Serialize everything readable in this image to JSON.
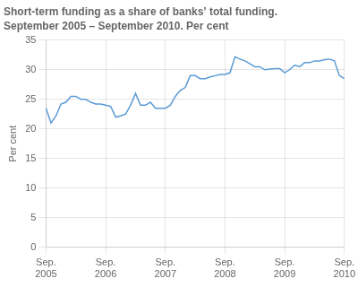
{
  "chart_data": {
    "type": "line",
    "title": "Short-term funding as a share of banks’ total funding.",
    "subtitle": "September 2005 – September 2010. Per cent",
    "ylabel": "Per cent",
    "color": "#5b9bd5",
    "grid": true,
    "ylim": [
      0,
      35
    ],
    "yticks": [
      0,
      5,
      10,
      15,
      20,
      25,
      30,
      35
    ],
    "categories": [
      "Sep.\n2005",
      null,
      null,
      null,
      null,
      null,
      null,
      null,
      null,
      null,
      null,
      null,
      "Sep.\n2006",
      null,
      null,
      null,
      null,
      null,
      null,
      null,
      null,
      null,
      null,
      null,
      "Sep.\n2007",
      null,
      null,
      null,
      null,
      null,
      null,
      null,
      null,
      null,
      null,
      null,
      "Sep.\n2008",
      null,
      null,
      null,
      null,
      null,
      null,
      null,
      null,
      null,
      null,
      null,
      "Sep.\n2009",
      null,
      null,
      null,
      null,
      null,
      null,
      null,
      null,
      null,
      null,
      null,
      "Sep.\n2010"
    ],
    "values": [
      23.5,
      21.0,
      22.2,
      24.2,
      24.5,
      25.5,
      25.5,
      25.0,
      25.0,
      24.5,
      24.2,
      24.2,
      24.0,
      23.8,
      22.0,
      22.2,
      22.5,
      24.0,
      26.0,
      24.0,
      24.0,
      24.5,
      23.5,
      23.5,
      23.5,
      24.0,
      25.5,
      26.5,
      27.0,
      29.0,
      29.0,
      28.5,
      28.5,
      28.8,
      29.0,
      29.2,
      29.2,
      29.5,
      32.2,
      31.8,
      31.5,
      31.0,
      30.5,
      30.5,
      30.0,
      30.1,
      30.2,
      30.2,
      29.5,
      30.0,
      30.8,
      30.5,
      31.2,
      31.2,
      31.5,
      31.5,
      31.7,
      31.8,
      31.5,
      29.0,
      28.5
    ]
  }
}
